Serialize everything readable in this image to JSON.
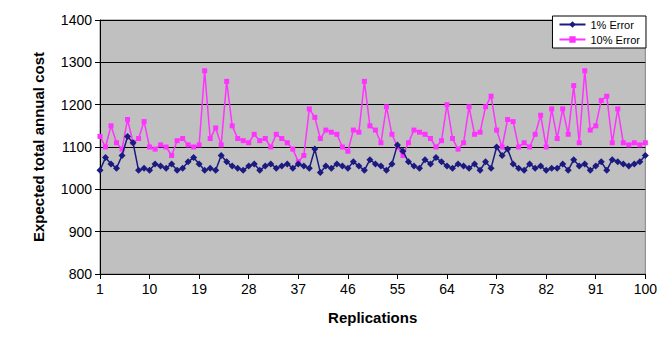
{
  "chart_data": {
    "type": "line",
    "x_label": "Replications",
    "y_label": "Expected total annual cost",
    "x": [
      1,
      2,
      3,
      4,
      5,
      6,
      7,
      8,
      9,
      10,
      11,
      12,
      13,
      14,
      15,
      16,
      17,
      18,
      19,
      20,
      21,
      22,
      23,
      24,
      25,
      26,
      27,
      28,
      29,
      30,
      31,
      32,
      33,
      34,
      35,
      36,
      37,
      38,
      39,
      40,
      41,
      42,
      43,
      44,
      45,
      46,
      47,
      48,
      49,
      50,
      51,
      52,
      53,
      54,
      55,
      56,
      57,
      58,
      59,
      60,
      61,
      62,
      63,
      64,
      65,
      66,
      67,
      68,
      69,
      70,
      71,
      72,
      73,
      74,
      75,
      76,
      77,
      78,
      79,
      80,
      81,
      82,
      83,
      84,
      85,
      86,
      87,
      88,
      89,
      90,
      91,
      92,
      93,
      94,
      95,
      96,
      97,
      98,
      99,
      100
    ],
    "xlim": [
      1,
      100
    ],
    "xticks": [
      1,
      10,
      19,
      28,
      37,
      46,
      55,
      64,
      73,
      82,
      91,
      100
    ],
    "ylim": [
      800,
      1400
    ],
    "yticks": [
      800,
      900,
      1000,
      1100,
      1200,
      1300,
      1400
    ],
    "grid": true,
    "legend": "upper right",
    "series": [
      {
        "name": "1% Error",
        "color": "#1a1a80",
        "marker": "diamond",
        "values": [
          1045,
          1075,
          1060,
          1050,
          1080,
          1125,
          1110,
          1045,
          1050,
          1045,
          1060,
          1055,
          1050,
          1060,
          1045,
          1050,
          1065,
          1075,
          1060,
          1045,
          1050,
          1045,
          1080,
          1065,
          1055,
          1050,
          1045,
          1055,
          1060,
          1045,
          1055,
          1060,
          1050,
          1055,
          1060,
          1050,
          1060,
          1055,
          1050,
          1095,
          1040,
          1055,
          1050,
          1060,
          1055,
          1050,
          1065,
          1055,
          1045,
          1070,
          1060,
          1055,
          1045,
          1060,
          1105,
          1090,
          1065,
          1055,
          1050,
          1070,
          1060,
          1075,
          1065,
          1055,
          1050,
          1060,
          1055,
          1050,
          1060,
          1045,
          1065,
          1050,
          1100,
          1080,
          1095,
          1060,
          1050,
          1045,
          1060,
          1050,
          1055,
          1045,
          1050,
          1050,
          1060,
          1045,
          1070,
          1055,
          1060,
          1045,
          1055,
          1065,
          1045,
          1070,
          1065,
          1060,
          1055,
          1060,
          1065,
          1080
        ]
      },
      {
        "name": "10% Error",
        "color": "#ff33ff",
        "marker": "square",
        "values": [
          1125,
          1100,
          1150,
          1110,
          1095,
          1165,
          1110,
          1120,
          1160,
          1100,
          1095,
          1105,
          1100,
          1080,
          1115,
          1120,
          1105,
          1100,
          1105,
          1280,
          1120,
          1145,
          1105,
          1255,
          1150,
          1120,
          1115,
          1110,
          1130,
          1115,
          1120,
          1100,
          1130,
          1120,
          1110,
          1095,
          1065,
          1080,
          1190,
          1170,
          1120,
          1140,
          1135,
          1130,
          1100,
          1090,
          1140,
          1135,
          1255,
          1150,
          1140,
          1110,
          1195,
          1130,
          1100,
          1080,
          1110,
          1140,
          1135,
          1130,
          1120,
          1100,
          1115,
          1200,
          1120,
          1095,
          1110,
          1195,
          1130,
          1135,
          1195,
          1220,
          1140,
          1100,
          1165,
          1160,
          1100,
          1110,
          1100,
          1130,
          1175,
          1100,
          1190,
          1120,
          1190,
          1130,
          1245,
          1110,
          1280,
          1140,
          1150,
          1210,
          1220,
          1110,
          1190,
          1110,
          1105,
          1110,
          1105,
          1110
        ]
      }
    ]
  }
}
